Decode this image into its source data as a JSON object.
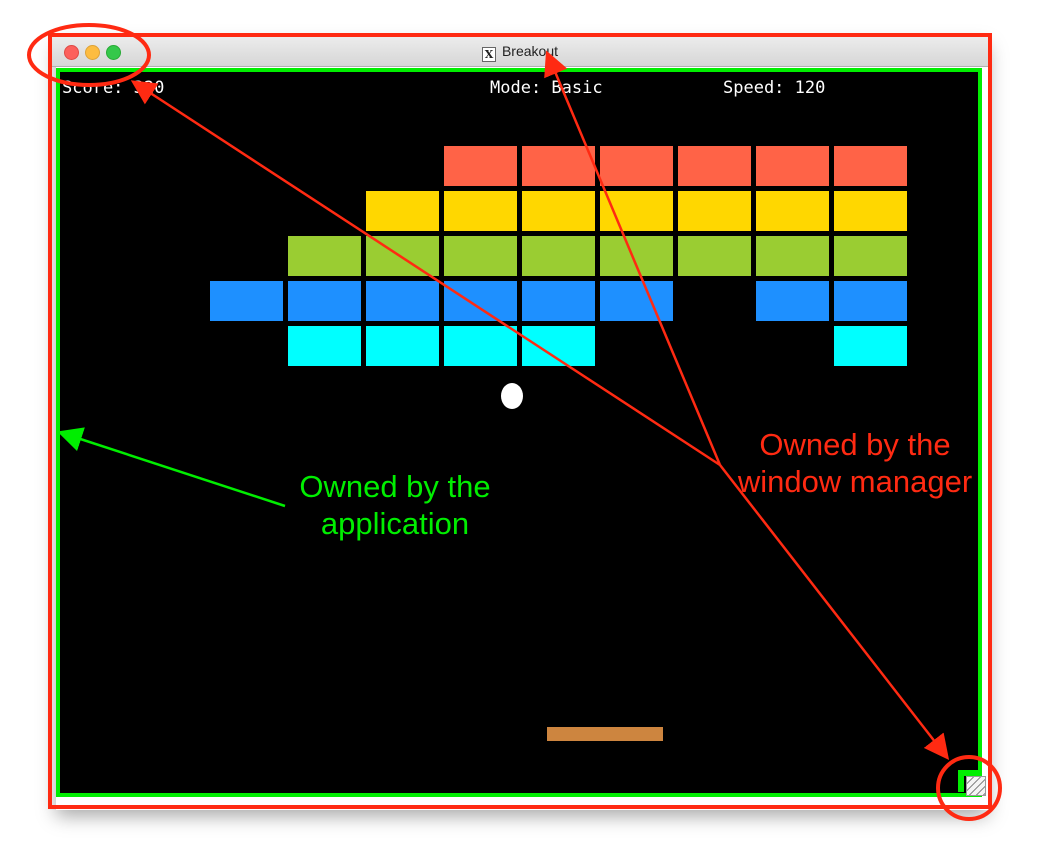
{
  "window": {
    "title": "Breakout",
    "title_icon": "X11-icon",
    "title_icon_glyph": "X"
  },
  "hud": {
    "score": "Score: 320",
    "mode": "Mode: Basic",
    "speed": "Speed: 120"
  },
  "colors": {
    "wm_accent": "#ff2a12",
    "app_accent": "#00ee00",
    "paddle": "#cd853f",
    "row_colors": [
      "#ff6347",
      "#ffd700",
      "#9acd32",
      "#1e90ff",
      "#00ffff"
    ]
  },
  "bricks": {
    "rows": [
      [
        0,
        0,
        0,
        1,
        1,
        1,
        1,
        1,
        1
      ],
      [
        0,
        0,
        1,
        1,
        1,
        1,
        1,
        1,
        1
      ],
      [
        0,
        1,
        1,
        1,
        1,
        1,
        1,
        1,
        1
      ],
      [
        1,
        1,
        1,
        1,
        1,
        1,
        0,
        1,
        1
      ],
      [
        0,
        1,
        1,
        1,
        1,
        0,
        0,
        0,
        1
      ]
    ]
  },
  "annotations": {
    "application": "Owned by the application",
    "application_lines": [
      "Owned by the",
      "application"
    ],
    "window_manager": "Owned by the window manager",
    "window_manager_lines": [
      "Owned by the",
      "window manager"
    ]
  }
}
